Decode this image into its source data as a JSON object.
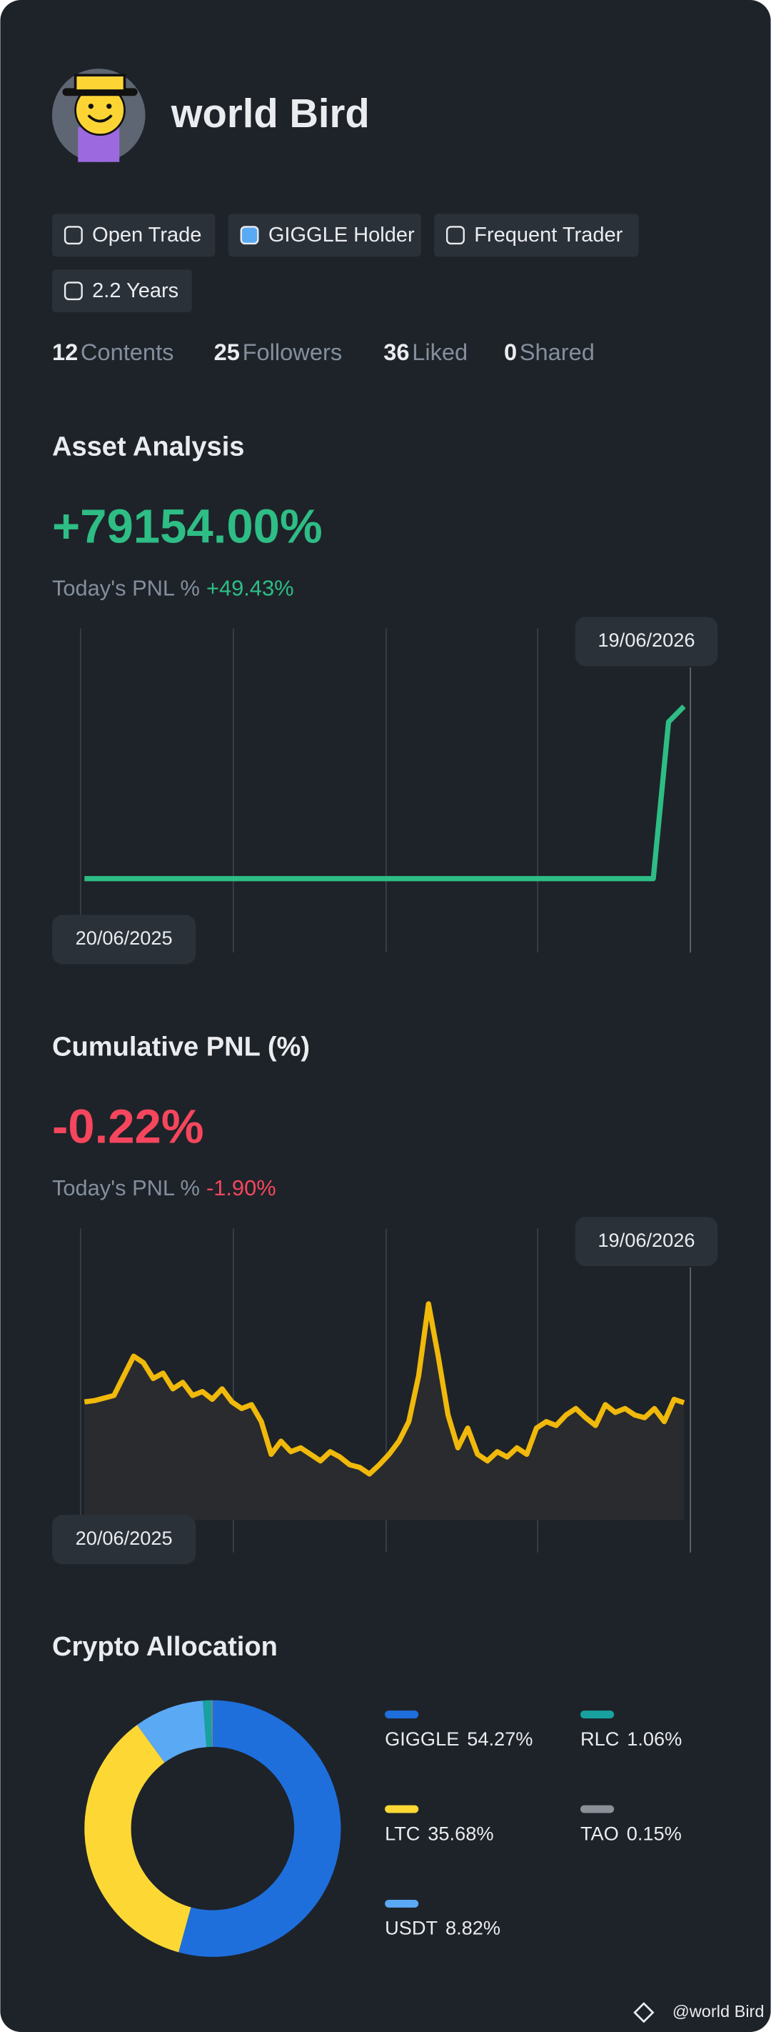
{
  "profile": {
    "name": "world Bird",
    "badges": [
      "Open Trade",
      "GIGGLE Holder",
      "Frequent Trader",
      "2.2 Years"
    ],
    "stats": [
      {
        "value": 12,
        "label": "Contents"
      },
      {
        "value": 25,
        "label": "Followers"
      },
      {
        "value": 36,
        "label": "Liked"
      },
      {
        "value": 0,
        "label": "Shared"
      }
    ]
  },
  "chart_data": [
    {
      "type": "line",
      "title": "Asset Analysis",
      "headline": "+79154.00%",
      "today_label": "Today's PNL %",
      "today_value": "+49.43%",
      "start_label": "20/06/2025",
      "end_label": "19/06/2026",
      "color": "#2ebd85",
      "area": false,
      "ylim": [
        -34000,
        115000
      ],
      "values": [
        0,
        0,
        0,
        0,
        0,
        0,
        0,
        0,
        0,
        0,
        0,
        0,
        0,
        0,
        0,
        0,
        0,
        0,
        0,
        0,
        0,
        0,
        0,
        0,
        0,
        0,
        0,
        0,
        0,
        0,
        0,
        0,
        0,
        0,
        0,
        0,
        0,
        0,
        72000,
        79154
      ]
    },
    {
      "type": "line",
      "title": "Cumulative PNL (%)",
      "headline": "-0.22%",
      "today_label": "Today's PNL %",
      "today_value": "-1.90%",
      "start_label": "20/06/2025",
      "end_label": "19/06/2026",
      "color": "#f0b90b",
      "area": true,
      "ylim": [
        -46,
        53
      ],
      "values": [
        0,
        0.4,
        1.2,
        2,
        8,
        14,
        12,
        7.2,
        8.8,
        4,
        6,
        2,
        3.2,
        0.8,
        4,
        0,
        -2,
        -0.8,
        -6,
        -16,
        -12,
        -15.2,
        -14,
        -16,
        -18,
        -15.2,
        -16.8,
        -19.2,
        -20,
        -22,
        -19.2,
        -16,
        -12,
        -6,
        8,
        30,
        14,
        -4,
        -14,
        -8,
        -16,
        -18,
        -15.2,
        -16.8,
        -14,
        -16,
        -8,
        -6,
        -7.2,
        -4,
        -2,
        -4.8,
        -7.2,
        -0.8,
        -3.2,
        -2,
        -4,
        -4.8,
        -2,
        -6,
        0.8,
        -0.22
      ]
    },
    {
      "type": "pie",
      "title": "Crypto Allocation",
      "categories": [
        "GIGGLE",
        "LTC",
        "USDT",
        "RLC",
        "TAO"
      ],
      "values": [
        54.27,
        35.68,
        8.82,
        1.06,
        0.15
      ],
      "value_labels": [
        "54.27%",
        "35.68%",
        "8.82%",
        "1.06%",
        "0.15%"
      ],
      "colors": [
        "#1e6fdc",
        "#fdd835",
        "#5aa9f5",
        "#17a2a0",
        "#8a8f98"
      ],
      "legend": "right"
    }
  ],
  "footer": "@world Bird"
}
